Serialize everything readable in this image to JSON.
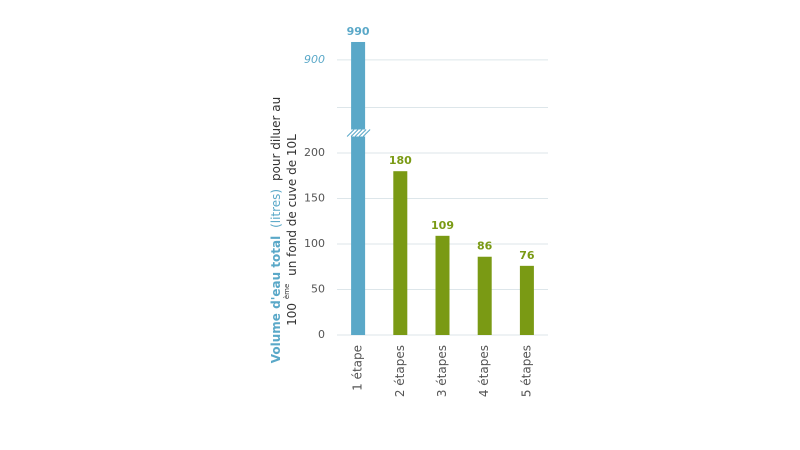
{
  "chart_data": {
    "type": "bar",
    "categories": [
      "1 étape",
      "2 étapes",
      "3 étapes",
      "4 étapes",
      "5 étapes"
    ],
    "values": [
      990,
      180,
      109,
      86,
      76
    ],
    "colors": [
      "#5aa8c8",
      "#7a9a14",
      "#7a9a14",
      "#7a9a14",
      "#7a9a14"
    ],
    "ylim": [
      0,
      1000
    ],
    "y_break": [
      250,
      660
    ],
    "yticks": [
      0,
      50,
      100,
      150,
      200,
      900
    ],
    "grid": true,
    "ylabel": {
      "line1": [
        "Volume d'eau total",
        "(litres)",
        "pour diluer au"
      ],
      "line2": [
        "100",
        "ème",
        "un fond de cuve de 10L"
      ]
    }
  }
}
